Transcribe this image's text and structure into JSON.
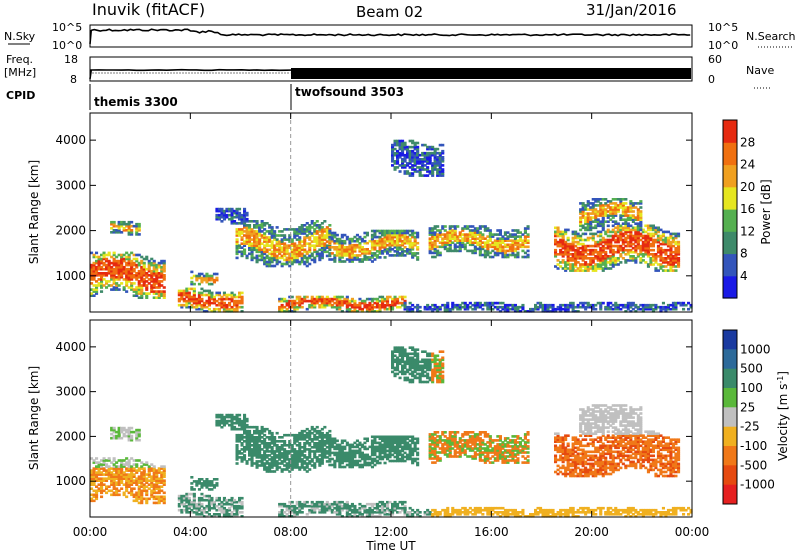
{
  "header": {
    "station": "Inuvik (fitACF)",
    "beam": "Beam 02",
    "date": "31/Jan/2016"
  },
  "status_panels": {
    "nsky_label": "N.Sky",
    "nsky_tick_top": "10^5",
    "nsky_tick_bottom": "10^0",
    "nsearch_label": "N.Search",
    "nsearch_tick_top": "10^5",
    "nsearch_tick_bottom": "10^0",
    "freq_label_1": "Freq.",
    "freq_label_2": "[MHz]",
    "freq_tick_top": "18",
    "freq_tick_bottom": "8",
    "nave_label": "Nave",
    "nave_tick_top": "60",
    "nave_tick_bottom": "0",
    "cpid_label": "CPID",
    "cpid_modes": [
      {
        "name": "themis 3300",
        "start_hour": 0
      },
      {
        "name": "twofsound 3503",
        "start_hour": 8
      }
    ]
  },
  "chart_data": [
    {
      "type": "heatmap",
      "ylabel": "Slant Range [km]",
      "xlabel": "",
      "xlim": [
        0,
        24
      ],
      "ylim": [
        200,
        4600
      ],
      "yticks": [
        "1000",
        "2000",
        "3000",
        "4000"
      ],
      "colorbar": {
        "label": "Power [dB]",
        "ticks": [
          "4",
          "8",
          "12",
          "16",
          "20",
          "24",
          "28"
        ],
        "colors": [
          "#1a1ae6",
          "#3355bb",
          "#3e8a6a",
          "#55b050",
          "#e6e620",
          "#f0a020",
          "#f07010",
          "#e62a10"
        ]
      }
    },
    {
      "type": "heatmap",
      "ylabel": "Slant Range [km]",
      "xlabel": "Time UT",
      "xlim": [
        0,
        24
      ],
      "ylim": [
        200,
        4600
      ],
      "yticks": [
        "1000",
        "2000",
        "3000",
        "4000"
      ],
      "xticks": [
        "00:00",
        "04:00",
        "08:00",
        "12:00",
        "16:00",
        "20:00",
        "00:00"
      ],
      "colorbar": {
        "label": "Velocity [m s^-1]",
        "ticks": [
          "1000",
          "500",
          "100",
          "25",
          "-25",
          "-100",
          "-500",
          "-1000"
        ],
        "colors": [
          "#1a3aa0",
          "#2d6a9a",
          "#3a8a6a",
          "#5ab83a",
          "#c0c0c0",
          "#f0b020",
          "#f07818",
          "#e64a10",
          "#e62020"
        ]
      }
    }
  ]
}
